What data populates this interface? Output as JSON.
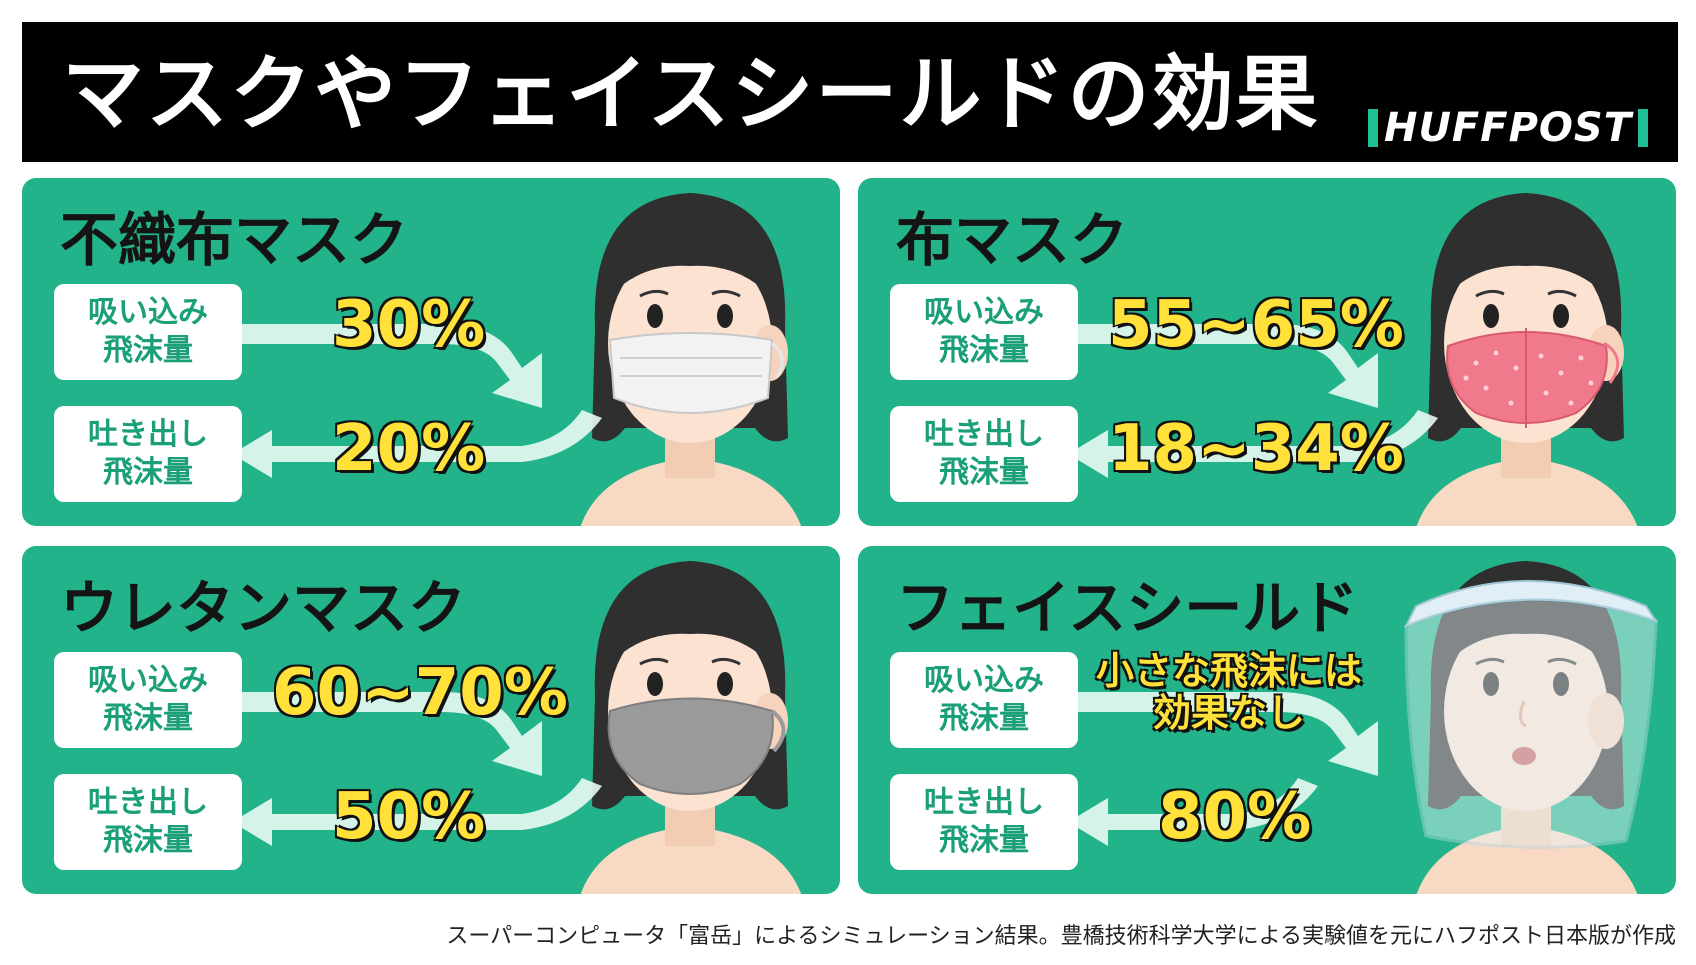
{
  "header": {
    "title": "マスクやフェイスシールドの効果",
    "logo": "HUFFPOST",
    "colors": {
      "background": "#000000",
      "accent": "#1fbf97"
    }
  },
  "labels": {
    "inhale_line1": "吸い込み",
    "inhale_line2": "飛沫量",
    "exhale_line1": "吐き出し",
    "exhale_line2": "飛沫量"
  },
  "panels": [
    {
      "title": "不織布マスク",
      "inhale": "30%",
      "exhale": "20%",
      "mask": "white-nonwoven-mask-icon",
      "mask_color": "#f2f2f2"
    },
    {
      "title": "布マスク",
      "inhale": "55~65%",
      "exhale": "18~34%",
      "mask": "pink-cloth-mask-icon",
      "mask_color": "#f07a8c"
    },
    {
      "title": "ウレタンマスク",
      "inhale": "60~70%",
      "exhale": "50%",
      "mask": "gray-urethane-mask-icon",
      "mask_color": "#9a9a9a"
    },
    {
      "title": "フェイスシールド",
      "inhale_line1": "小さな飛沫には",
      "inhale_line2": "効果なし",
      "exhale": "80%",
      "mask": "face-shield-icon",
      "mask_color": "#e8f4f8"
    }
  ],
  "panel_color": "#22b38a",
  "footer": "スーパーコンピュータ「富岳」によるシミュレーション結果。豊橋技術科学大学による実験値を元にハフポスト日本版が作成"
}
